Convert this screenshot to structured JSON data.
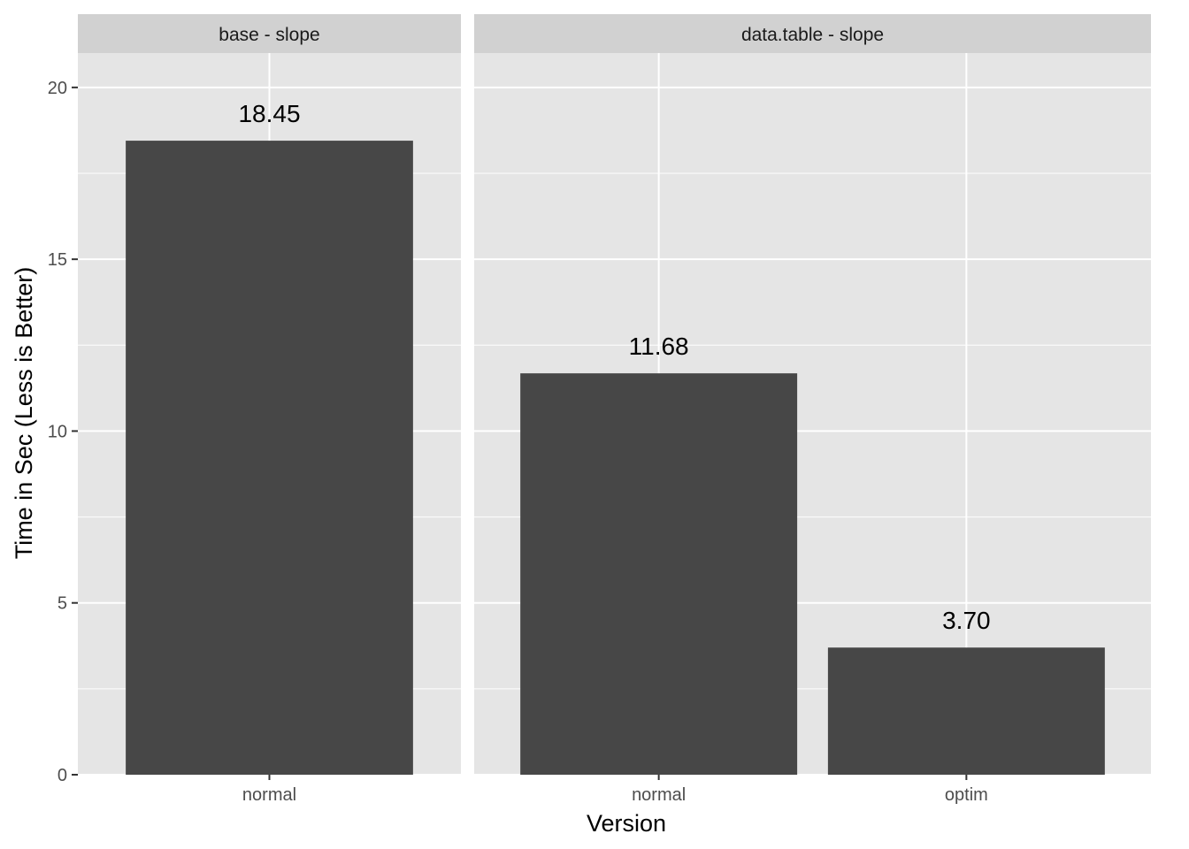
{
  "chart_data": {
    "type": "bar",
    "xlabel": "Version",
    "ylabel": "Time in Sec (Less is Better)",
    "ylim": [
      0,
      20
    ],
    "yticks": [
      0,
      5,
      10,
      15,
      20
    ],
    "ytick_labels": [
      "0",
      "5",
      "10",
      "15",
      "20"
    ],
    "grid": true,
    "facets": [
      {
        "strip": "base - slope",
        "categories": [
          "normal"
        ],
        "values": [
          18.45
        ],
        "labels": [
          "18.45"
        ]
      },
      {
        "strip": "data.table - slope",
        "categories": [
          "normal",
          "optim"
        ],
        "values": [
          11.68,
          3.7
        ],
        "labels": [
          "11.68",
          "3.70"
        ]
      }
    ],
    "colors": {
      "bar": "#474747",
      "panel": "#e5e5e5",
      "strip": "#d1d1d1",
      "grid": "#ffffff",
      "tick": "#333333"
    }
  }
}
